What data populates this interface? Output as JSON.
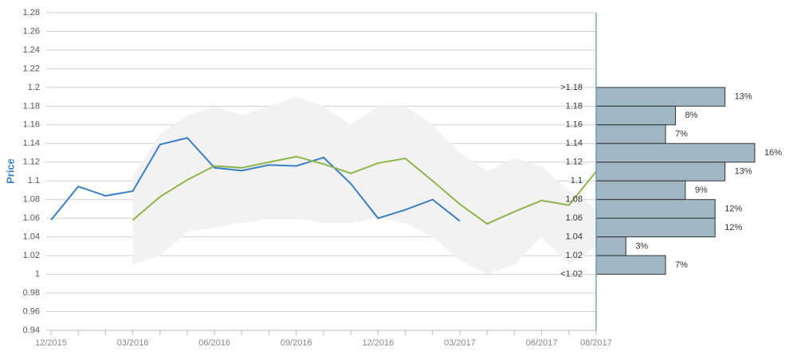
{
  "chart_data": [
    {
      "type": "line",
      "y_label": "Price",
      "categories": [
        "12/2015",
        null,
        null,
        "03/2016",
        null,
        null,
        "06/2016",
        null,
        null,
        "09/2016",
        null,
        null,
        "12/2016",
        null,
        null,
        "03/2017",
        null,
        null,
        "06/2017",
        null,
        "08/2017"
      ],
      "series": [
        {
          "color": "#3a7fc4",
          "values": [
            1.058,
            1.094,
            1.084,
            1.089,
            1.139,
            1.146,
            1.114,
            1.111,
            1.117,
            1.116,
            1.125,
            1.097,
            1.06,
            1.069,
            1.08,
            1.057,
            null,
            null,
            null,
            null,
            null
          ]
        },
        {
          "color": "#8db54a",
          "values": [
            null,
            null,
            null,
            1.058,
            1.083,
            1.101,
            1.116,
            1.114,
            1.12,
            1.126,
            1.118,
            1.108,
            1.119,
            1.124,
            1.1,
            1.075,
            1.054,
            1.067,
            1.079,
            1.074,
            1.11
          ]
        }
      ],
      "band": {
        "color": "#f2f2f2",
        "upper": [
          null,
          null,
          null,
          1.105,
          1.15,
          1.17,
          1.18,
          1.17,
          1.18,
          1.19,
          1.18,
          1.16,
          1.18,
          1.18,
          1.16,
          1.13,
          1.11,
          1.125,
          1.115,
          1.09,
          1.07
        ],
        "lower": [
          null,
          null,
          null,
          1.01,
          1.02,
          1.045,
          1.05,
          1.055,
          1.06,
          1.06,
          1.055,
          1.055,
          1.06,
          1.055,
          1.04,
          1.015,
          1.0,
          1.01,
          1.04,
          1.01,
          1.03
        ]
      },
      "ylim": [
        0.94,
        1.28
      ],
      "yticks": [
        0.94,
        0.96,
        0.98,
        1,
        1.02,
        1.04,
        1.06,
        1.08,
        1.1,
        1.12,
        1.14,
        1.16,
        1.18,
        1.2,
        1.22,
        1.24,
        1.26,
        1.28
      ],
      "grid": true
    },
    {
      "type": "histogram",
      "orientation": "horizontal",
      "color": "#a0b8c6",
      "bins": [
        {
          "value": 1.2,
          "label": ">1.18"
        },
        1.18,
        1.16,
        1.14,
        1.12,
        1.1,
        1.08,
        1.06,
        1.04,
        1.02,
        {
          "value": 1,
          "label": "<1.02"
        }
      ],
      "values": [
        13,
        8,
        7,
        16,
        13,
        9,
        12,
        12,
        3,
        7
      ],
      "value_labels": [
        "13%",
        "8%",
        "7%",
        "16%",
        "13%",
        "9%",
        "12%",
        "12%",
        "3%",
        "7%"
      ],
      "xlim": [
        0,
        16
      ]
    }
  ]
}
